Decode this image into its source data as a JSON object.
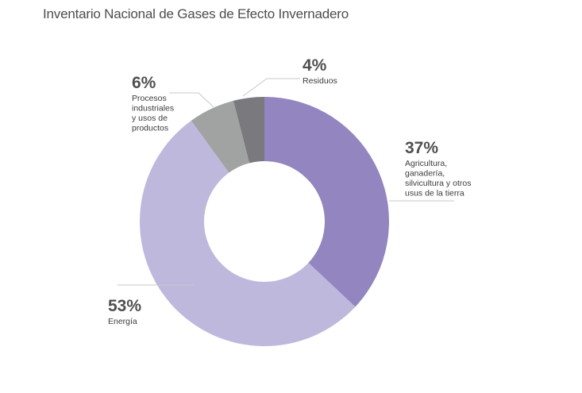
{
  "title": "Inventario Nacional de Gases de Efecto Invernadero",
  "chart_data": {
    "type": "pie",
    "donut": true,
    "slices": [
      {
        "name": "Agricultura, ganadería, silvicultura y otros usus de la tierra",
        "label_lines": [
          "Agricultura,",
          "ganadería,",
          "silvicultura y otros",
          "usus de la tierra"
        ],
        "value": 37,
        "value_label": "37%",
        "color": "#9385bf"
      },
      {
        "name": "Energía",
        "label_lines": [
          "Energía"
        ],
        "value": 53,
        "value_label": "53%",
        "color": "#bfb8dd"
      },
      {
        "name": "Procesos industriales y usos de productos",
        "label_lines": [
          "Procesos",
          "industriales",
          "y usos de",
          "productos"
        ],
        "value": 6,
        "value_label": "6%",
        "color": "#a0a3a2"
      },
      {
        "name": "Residuos",
        "label_lines": [
          "Residuos"
        ],
        "value": 4,
        "value_label": "4%",
        "color": "#7a7a7e"
      }
    ],
    "start_angle_deg": 0,
    "direction": "clockwise",
    "legend": "none"
  }
}
